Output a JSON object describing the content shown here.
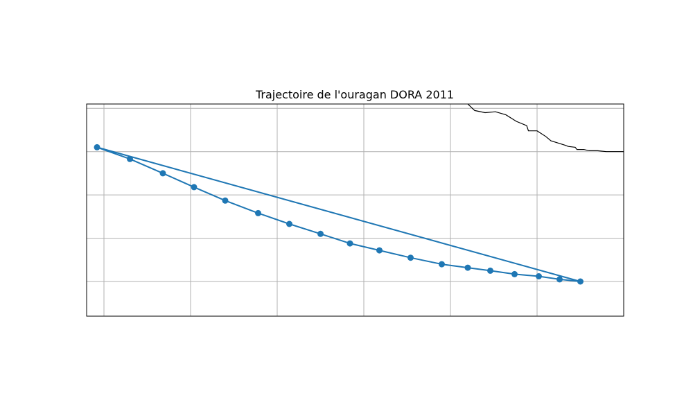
{
  "chart_data": {
    "type": "line",
    "title": "Trajectoire de l'ouragan DORA 2011",
    "xlabel": "",
    "ylabel": "",
    "xlim": [
      -121,
      -90
    ],
    "ylim": [
      8.2,
      13.1
    ],
    "grid": true,
    "x_gridlines": [
      -120,
      -115,
      -110,
      -105,
      -100,
      -95
    ],
    "y_gridlines": [
      8,
      9,
      10,
      11,
      12,
      13
    ],
    "series": [
      {
        "name": "",
        "color": "#1f77b4",
        "marker": "circle",
        "x": [
          -92.5,
          -93.7,
          -94.9,
          -96.3,
          -97.7,
          -99.0,
          -100.5,
          -102.3,
          -104.1,
          -105.8,
          -107.5,
          -109.3,
          -111.1,
          -113.0,
          -114.8,
          -116.6,
          -118.5,
          -120.4
        ],
        "y": [
          9.0,
          9.05,
          9.12,
          9.17,
          9.25,
          9.32,
          9.4,
          9.55,
          9.72,
          9.88,
          10.1,
          10.33,
          10.58,
          10.87,
          11.18,
          11.5,
          11.83,
          12.1
        ]
      }
    ],
    "closing_segment": true,
    "coastline_color": "#000000",
    "coastline": [
      [
        -99.0,
        13.1
      ],
      [
        -98.6,
        12.95
      ],
      [
        -98.0,
        12.9
      ],
      [
        -97.4,
        12.92
      ],
      [
        -96.8,
        12.85
      ],
      [
        -96.2,
        12.7
      ],
      [
        -95.6,
        12.6
      ],
      [
        -95.5,
        12.48
      ],
      [
        -95.0,
        12.48
      ],
      [
        -94.5,
        12.35
      ],
      [
        -94.2,
        12.25
      ],
      [
        -93.8,
        12.2
      ],
      [
        -93.4,
        12.15
      ],
      [
        -93.2,
        12.12
      ],
      [
        -92.8,
        12.1
      ],
      [
        -92.7,
        12.05
      ],
      [
        -92.3,
        12.05
      ],
      [
        -92.0,
        12.02
      ],
      [
        -91.5,
        12.02
      ],
      [
        -91.0,
        12.0
      ],
      [
        -90.5,
        12.0
      ],
      [
        -90.0,
        12.0
      ]
    ]
  }
}
